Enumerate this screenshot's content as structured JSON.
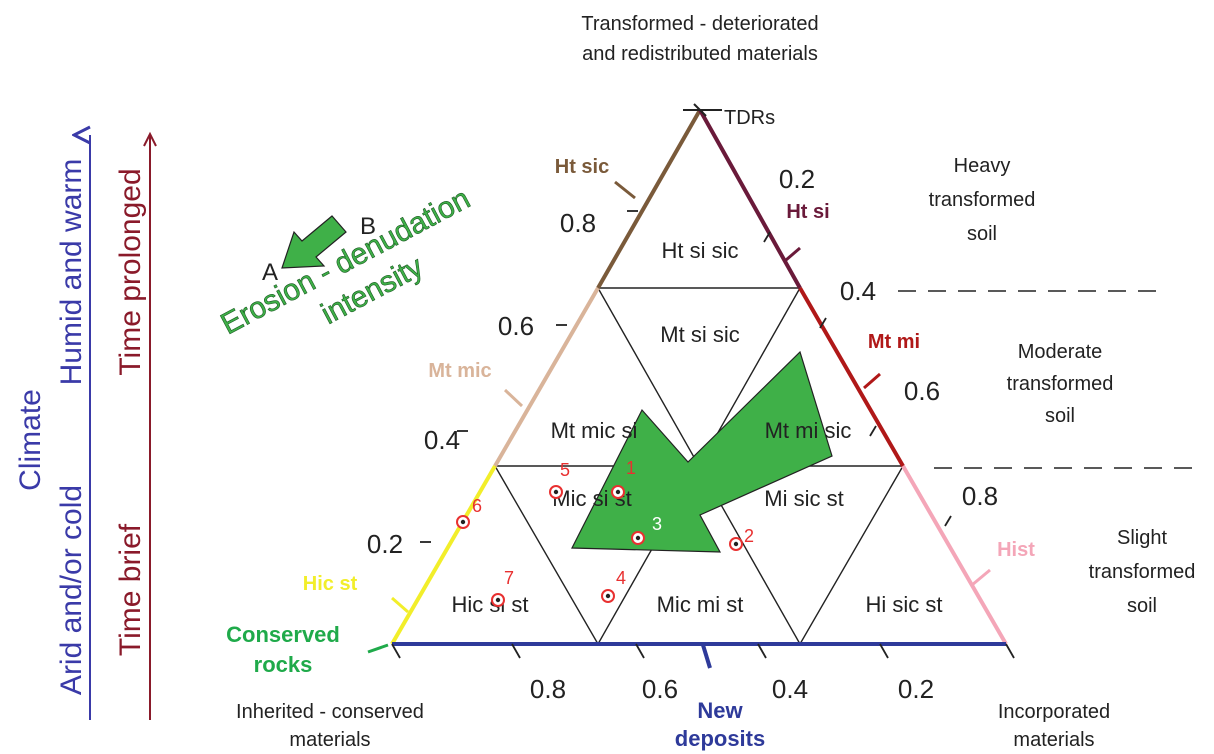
{
  "corners": {
    "top": [
      "Transformed - deteriorated",
      "and redistributed materials"
    ],
    "top_mark": "TDRs",
    "bottom_left": [
      "Inherited - conserved",
      "materials"
    ],
    "bottom_right": [
      "Incorporated",
      "materials"
    ]
  },
  "edge_labels": {
    "ht_sic": "Ht sic",
    "mt_mic": "Mt mic",
    "hic_st": "Hic st",
    "conserved": [
      "Conserved",
      "rocks"
    ],
    "ht_si": "Ht si",
    "mt_mi": "Mt mi",
    "hist": "Hist",
    "new_deposits": [
      "New",
      "deposits"
    ]
  },
  "colors": {
    "ht_sic": "#7a5a3a",
    "mt_mic": "#d9b49a",
    "hic_st": "#f2ee2a",
    "conserved": "#1faa4a",
    "ht_si": "#6a1a3a",
    "mt_mi": "#b01818",
    "hist": "#f4a6b8",
    "new_deposits": "#2e3a9a",
    "arrow_fill": "#3fb048",
    "points": "#e83030",
    "erosion_text": "#3fb048",
    "climate": "#3a3aa8",
    "time": "#8a1a2a"
  },
  "left_ticks": [
    "0.8",
    "0.6",
    "0.4",
    "0.2"
  ],
  "right_ticks": [
    "0.2",
    "0.4",
    "0.6",
    "0.8"
  ],
  "bottom_ticks": [
    "0.8",
    "0.6",
    "0.4",
    "0.2"
  ],
  "regions": {
    "ht_si_sic": "Ht si sic",
    "mt_si_sic": "Mt si sic",
    "mt_mic_si": "Mt mic si",
    "mt_mi_sic": "Mt mi sic",
    "mic_si_st": "Mic si st",
    "mi_sic_st": "Mi sic st",
    "hic_si_st": "Hic si st",
    "mic_mi_st": "Mic mi st",
    "hi_sic_st": "Hi sic st"
  },
  "right_zones": {
    "heavy": [
      "Heavy",
      "transformed",
      "soil"
    ],
    "moderate": [
      "Moderate",
      "transformed",
      "soil"
    ],
    "slight": [
      "Slight",
      "transformed",
      "soil"
    ]
  },
  "erosion": {
    "line1": "Erosion - denudation",
    "line2": "intensity",
    "a": "A",
    "b": "B"
  },
  "axes": {
    "climate": "Climate",
    "climate_top": "Humid and warm",
    "climate_bottom": "Arid and/or cold",
    "time_top": "Time prolonged",
    "time_bottom": "Time brief"
  },
  "sample_points": [
    "1",
    "2",
    "3",
    "4",
    "5",
    "6",
    "7"
  ]
}
